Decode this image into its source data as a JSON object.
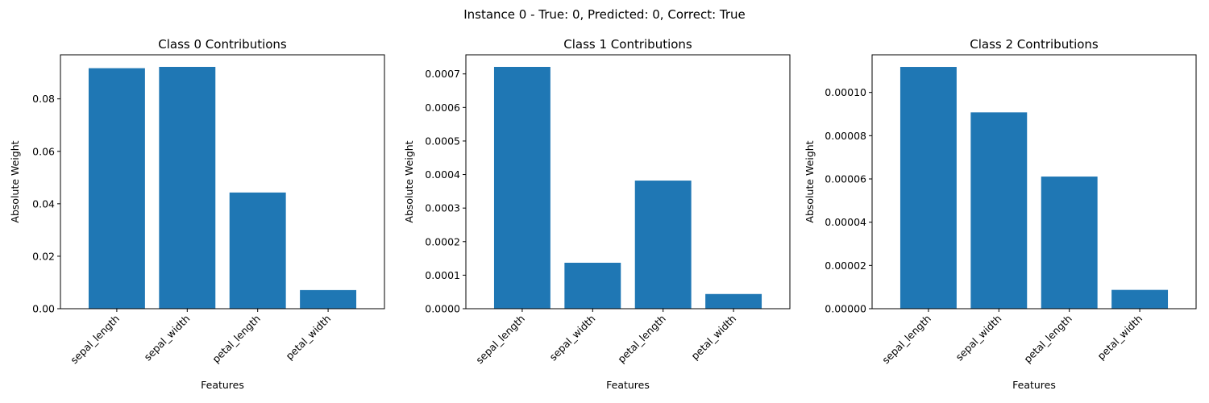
{
  "suptitle": "Instance 0 - True: 0, Predicted: 0, Correct: True",
  "chart_data": [
    {
      "type": "bar",
      "title": "Class 0 Contributions",
      "xlabel": "Features",
      "ylabel": "Absolute Weight",
      "categories": [
        "sepal_length",
        "sepal_width",
        "petal_length",
        "petal_width"
      ],
      "values": [
        0.0917,
        0.0922,
        0.0443,
        0.0071
      ],
      "ylim": [
        0,
        0.0968
      ],
      "yticks": [
        0.0,
        0.02,
        0.04,
        0.06,
        0.08
      ],
      "ytick_labels": [
        "0.00",
        "0.02",
        "0.04",
        "0.06",
        "0.08"
      ],
      "bar_color": "#1f77b4",
      "grid": false
    },
    {
      "type": "bar",
      "title": "Class 1 Contributions",
      "xlabel": "Features",
      "ylabel": "Absolute Weight",
      "categories": [
        "sepal_length",
        "sepal_width",
        "petal_length",
        "petal_width"
      ],
      "values": [
        0.000721,
        0.000137,
        0.000382,
        4.38e-05
      ],
      "ylim": [
        0,
        0.000757
      ],
      "yticks": [
        0.0,
        0.0001,
        0.0002,
        0.0003,
        0.0004,
        0.0005,
        0.0006,
        0.0007
      ],
      "ytick_labels": [
        "0.0000",
        "0.0001",
        "0.0002",
        "0.0003",
        "0.0004",
        "0.0005",
        "0.0006",
        "0.0007"
      ],
      "bar_color": "#1f77b4",
      "grid": false
    },
    {
      "type": "bar",
      "title": "Class 2 Contributions",
      "xlabel": "Features",
      "ylabel": "Absolute Weight",
      "categories": [
        "sepal_length",
        "sepal_width",
        "petal_length",
        "petal_width"
      ],
      "values": [
        0.0001118,
        9.08e-05,
        6.11e-05,
        8.7e-06
      ],
      "ylim": [
        0,
        0.0001174
      ],
      "yticks": [
        0.0,
        2e-05,
        4e-05,
        6e-05,
        8e-05,
        0.0001
      ],
      "ytick_labels": [
        "0.00000",
        "0.00002",
        "0.00004",
        "0.00006",
        "0.00008",
        "0.00010"
      ],
      "bar_color": "#1f77b4",
      "grid": false
    }
  ]
}
